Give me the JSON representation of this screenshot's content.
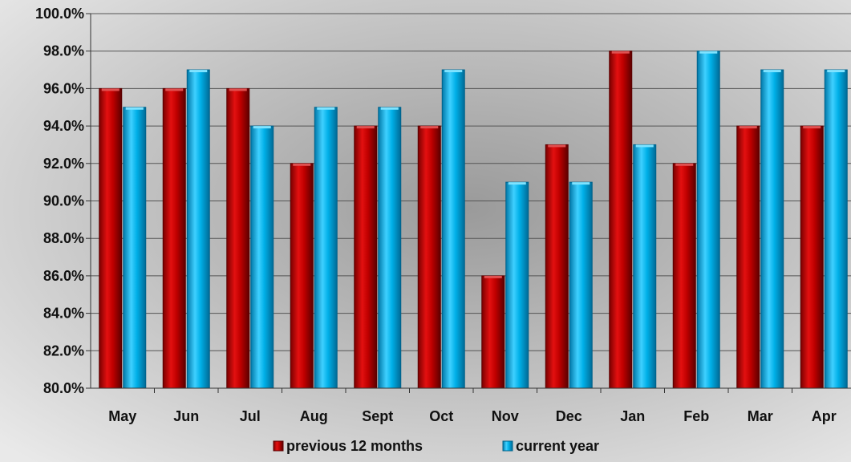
{
  "chart_data": {
    "type": "bar",
    "categories": [
      "May",
      "Jun",
      "Jul",
      "Aug",
      "Sept",
      "Oct",
      "Nov",
      "Dec",
      "Jan",
      "Feb",
      "Mar",
      "Apr"
    ],
    "series": [
      {
        "name": "previous 12 months",
        "values": [
          96,
          96,
          96,
          92,
          94,
          94,
          86,
          93,
          98,
          92,
          94,
          94
        ],
        "color": "#c00000"
      },
      {
        "name": "current year",
        "values": [
          95,
          97,
          94,
          95,
          95,
          97,
          91,
          91,
          93,
          98,
          97,
          97
        ],
        "color": "#00b0e8"
      }
    ],
    "ylim": [
      80,
      100
    ],
    "yticks": [
      "80.0%",
      "82.0%",
      "84.0%",
      "86.0%",
      "88.0%",
      "90.0%",
      "92.0%",
      "94.0%",
      "96.0%",
      "98.0%",
      "100.0%"
    ],
    "grid": true,
    "legend_position": "bottom",
    "title": "",
    "xlabel": "",
    "ylabel": ""
  }
}
